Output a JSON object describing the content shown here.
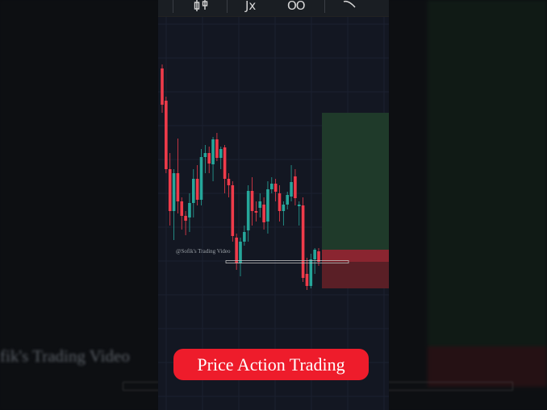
{
  "toolbar": {
    "icons": [
      "candles-icon",
      "fx-indicators-icon",
      "compare-icon",
      "drawing-tool-icon"
    ],
    "fx_label": "Jx",
    "compare_label": "OO"
  },
  "watermark": "@Sofik's Trading Video",
  "background_watermark": "fik's Trading Video",
  "banner": "Price Action Trading",
  "colors": {
    "up": "#26a69a",
    "down": "#ef3b4a",
    "background": "#131722",
    "banner": "#ee1c2b",
    "target_zone": "#1f3a2a",
    "stop_zone": "#5a1f26"
  },
  "chart_data": {
    "type": "candlestick",
    "title": "",
    "grid": true,
    "candles": [
      {
        "o": 315,
        "h": 320,
        "l": 260,
        "c": 270
      },
      {
        "o": 275,
        "h": 280,
        "l": 185,
        "c": 190
      },
      {
        "o": 190,
        "h": 210,
        "l": 120,
        "c": 138
      },
      {
        "o": 138,
        "h": 190,
        "l": 102,
        "c": 185
      },
      {
        "o": 185,
        "h": 228,
        "l": 135,
        "c": 150
      },
      {
        "o": 150,
        "h": 155,
        "l": 115,
        "c": 132
      },
      {
        "o": 132,
        "h": 138,
        "l": 108,
        "c": 126
      },
      {
        "o": 130,
        "h": 160,
        "l": 112,
        "c": 148
      },
      {
        "o": 148,
        "h": 190,
        "l": 130,
        "c": 178
      },
      {
        "o": 178,
        "h": 195,
        "l": 145,
        "c": 152
      },
      {
        "o": 152,
        "h": 215,
        "l": 145,
        "c": 205
      },
      {
        "o": 205,
        "h": 220,
        "l": 185,
        "c": 210
      },
      {
        "o": 210,
        "h": 218,
        "l": 185,
        "c": 197
      },
      {
        "o": 196,
        "h": 230,
        "l": 175,
        "c": 227
      },
      {
        "o": 227,
        "h": 235,
        "l": 200,
        "c": 204
      },
      {
        "o": 204,
        "h": 218,
        "l": 190,
        "c": 215
      },
      {
        "o": 217,
        "h": 220,
        "l": 160,
        "c": 178
      },
      {
        "o": 178,
        "h": 185,
        "l": 155,
        "c": 170
      },
      {
        "o": 170,
        "h": 175,
        "l": 100,
        "c": 107
      },
      {
        "o": 105,
        "h": 110,
        "l": 65,
        "c": 73
      },
      {
        "o": 73,
        "h": 105,
        "l": 57,
        "c": 100
      },
      {
        "o": 100,
        "h": 120,
        "l": 95,
        "c": 112
      },
      {
        "o": 114,
        "h": 170,
        "l": 100,
        "c": 163
      },
      {
        "o": 163,
        "h": 180,
        "l": 120,
        "c": 138
      },
      {
        "o": 138,
        "h": 150,
        "l": 125,
        "c": 136
      },
      {
        "o": 142,
        "h": 160,
        "l": 130,
        "c": 150
      },
      {
        "o": 146,
        "h": 155,
        "l": 115,
        "c": 124
      },
      {
        "o": 125,
        "h": 175,
        "l": 110,
        "c": 165
      },
      {
        "o": 165,
        "h": 180,
        "l": 160,
        "c": 172
      },
      {
        "o": 172,
        "h": 178,
        "l": 150,
        "c": 162
      },
      {
        "o": 160,
        "h": 170,
        "l": 125,
        "c": 138
      },
      {
        "o": 138,
        "h": 150,
        "l": 120,
        "c": 146
      },
      {
        "o": 146,
        "h": 162,
        "l": 140,
        "c": 158
      },
      {
        "o": 156,
        "h": 195,
        "l": 150,
        "c": 174
      },
      {
        "o": 181,
        "h": 190,
        "l": 145,
        "c": 154
      },
      {
        "o": 144,
        "h": 150,
        "l": 120,
        "c": 146
      },
      {
        "o": 145,
        "h": 155,
        "l": 50,
        "c": 55
      },
      {
        "o": 60,
        "h": 80,
        "l": 40,
        "c": 45
      },
      {
        "o": 45,
        "h": 85,
        "l": 42,
        "c": 78
      },
      {
        "o": 78,
        "h": 92,
        "l": 60,
        "c": 90
      },
      {
        "o": 88,
        "h": 92,
        "l": 70,
        "c": 75
      }
    ],
    "support_level": 75,
    "target_zone": [
      90,
      260
    ],
    "stop_zone": [
      42,
      90
    ]
  }
}
